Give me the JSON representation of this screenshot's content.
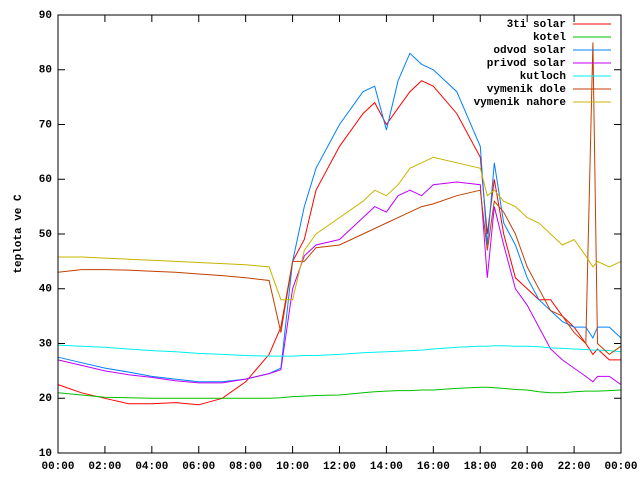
{
  "chart_data": {
    "type": "line",
    "y_label": "teplota ve C",
    "x": [
      0,
      1,
      2,
      3,
      4,
      5,
      6,
      7,
      8,
      9,
      9.5,
      10,
      10.5,
      11,
      12,
      13,
      13.5,
      14,
      14.5,
      15,
      15.5,
      16,
      17,
      18,
      18.3,
      18.6,
      19,
      19.5,
      20,
      20.5,
      21,
      21.5,
      22,
      22.5,
      22.8,
      23,
      23.5,
      24
    ],
    "xlim": [
      0,
      24
    ],
    "xticks": [
      {
        "value": 0,
        "label": "00:00"
      },
      {
        "value": 2,
        "label": "02:00"
      },
      {
        "value": 4,
        "label": "04:00"
      },
      {
        "value": 6,
        "label": "06:00"
      },
      {
        "value": 8,
        "label": "08:00"
      },
      {
        "value": 10,
        "label": "10:00"
      },
      {
        "value": 12,
        "label": "12:00"
      },
      {
        "value": 14,
        "label": "14:00"
      },
      {
        "value": 16,
        "label": "16:00"
      },
      {
        "value": 18,
        "label": "18:00"
      },
      {
        "value": 20,
        "label": "20:00"
      },
      {
        "value": 22,
        "label": "22:00"
      },
      {
        "value": 24,
        "label": "00:00"
      }
    ],
    "ylim": [
      10,
      90
    ],
    "yticks": [
      10,
      20,
      30,
      40,
      50,
      60,
      70,
      80,
      90
    ],
    "grid": false,
    "legend": "top-right",
    "series": [
      {
        "name": "3ti solar",
        "color": "#ff0000",
        "values": [
          22.5,
          21,
          20,
          19,
          19,
          19.2,
          18.8,
          20,
          23,
          28,
          33,
          45,
          49,
          58,
          66,
          72,
          74,
          70,
          73,
          76,
          78,
          77,
          72,
          64,
          50,
          60,
          50,
          42,
          40,
          38,
          38,
          35,
          33,
          30,
          28,
          29,
          27,
          27
        ]
      },
      {
        "name": "kotel",
        "color": "#00c000",
        "values": [
          21,
          20.6,
          20.2,
          20.1,
          20,
          20,
          20,
          20,
          20,
          20,
          20.1,
          20.3,
          20.4,
          20.5,
          20.6,
          21,
          21.2,
          21.3,
          21.4,
          21.4,
          21.5,
          21.5,
          21.8,
          22,
          22,
          21.9,
          21.8,
          21.6,
          21.5,
          21.2,
          21,
          21,
          21.2,
          21.3,
          21.3,
          21.3,
          21.4,
          21.5
        ]
      },
      {
        "name": "odvod solar",
        "color": "#0080ff",
        "values": [
          27.5,
          26.5,
          25.5,
          24.8,
          24,
          23.5,
          23,
          23,
          23.5,
          24.5,
          25.5,
          45,
          55,
          62,
          70,
          76,
          77,
          69,
          78,
          83,
          81,
          80,
          76,
          66,
          48,
          63,
          52,
          48,
          42,
          38,
          36,
          34,
          33,
          33,
          31,
          33,
          33,
          31
        ]
      },
      {
        "name": "privod solar",
        "color": "#c000ff",
        "values": [
          27,
          26,
          25,
          24.3,
          23.8,
          23.2,
          22.8,
          22.8,
          23.5,
          24.5,
          25.2,
          40,
          46,
          48,
          49,
          53,
          55,
          54,
          57,
          58,
          57,
          59,
          59.5,
          59,
          42,
          55,
          48,
          40,
          37,
          33,
          29,
          27,
          25.5,
          24,
          23,
          24,
          24,
          22.5
        ]
      },
      {
        "name": "kutloch",
        "color": "#00eeee",
        "values": [
          29.7,
          29.5,
          29.3,
          29,
          28.7,
          28.5,
          28.2,
          28,
          27.8,
          27.7,
          27.7,
          27.7,
          27.8,
          27.8,
          28,
          28.3,
          28.4,
          28.5,
          28.6,
          28.7,
          28.8,
          29,
          29.3,
          29.5,
          29.5,
          29.6,
          29.6,
          29.5,
          29.5,
          29.4,
          29.2,
          29.1,
          29,
          28.9,
          28.8,
          28.8,
          28.7,
          28.5
        ]
      },
      {
        "name": "vymenik dole",
        "color": "#c04000",
        "values": [
          43,
          43.5,
          43.5,
          43.4,
          43.2,
          43,
          42.7,
          42.4,
          42,
          41.5,
          32,
          45,
          45,
          47.5,
          48,
          50,
          51,
          52,
          53,
          54,
          55,
          55.5,
          57,
          58,
          47,
          56,
          54,
          50,
          44,
          40,
          36,
          35,
          32,
          30,
          85,
          30,
          28,
          29.5
        ]
      },
      {
        "name": "vymenik nahore",
        "color": "#c8b400",
        "values": [
          45.8,
          45.8,
          45.6,
          45.4,
          45.2,
          45,
          44.8,
          44.6,
          44.4,
          44,
          38,
          38,
          47,
          50,
          53,
          56,
          58,
          57,
          59,
          62,
          63,
          64,
          63,
          62,
          57,
          58,
          56,
          55,
          53,
          52,
          50,
          48,
          49,
          46,
          44,
          45,
          44,
          45
        ]
      }
    ]
  }
}
